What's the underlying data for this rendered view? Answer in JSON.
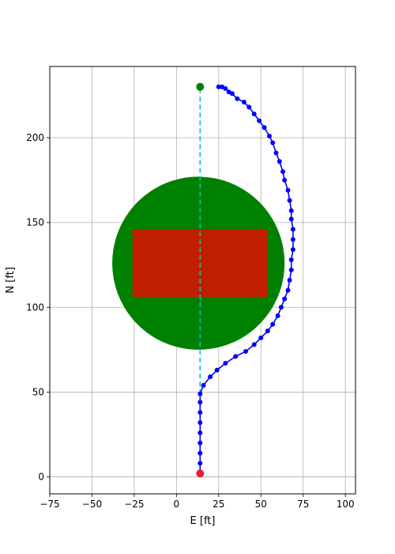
{
  "chart_data": {
    "type": "scatter",
    "xlabel": "E [ft]",
    "ylabel": "N [ft]",
    "xlim": [
      -75,
      106
    ],
    "ylim": [
      -10,
      242
    ],
    "grid": true,
    "x_ticks": [
      -75,
      -50,
      -25,
      0,
      25,
      50,
      75,
      100
    ],
    "y_ticks": [
      0,
      50,
      100,
      150,
      200
    ],
    "obstacle_circle": {
      "center": [
        13,
        126
      ],
      "radius": 51,
      "color": "#008000"
    },
    "obstacle_rect": {
      "x": [
        -26,
        54
      ],
      "y": [
        106,
        146
      ],
      "color": "#c02000"
    },
    "start_point": {
      "x": 14,
      "y": 2,
      "color": "#e0203a"
    },
    "goal_point": {
      "x": 14,
      "y": 230,
      "color": "#008000"
    },
    "straight_line": {
      "x": [
        14,
        14
      ],
      "y": [
        2,
        230
      ],
      "color": "#00bfbf",
      "style": "dashed"
    },
    "trajectory": {
      "color": "#0000ff",
      "x": [
        14,
        14,
        14,
        14,
        14,
        14,
        14,
        14,
        14,
        16,
        20,
        24,
        29,
        35,
        41,
        46,
        50,
        54,
        57,
        60,
        62,
        64,
        66,
        67,
        68,
        68,
        69,
        69,
        69,
        68,
        68,
        67,
        66,
        64,
        63,
        61,
        59,
        57,
        55,
        52,
        49,
        46,
        43,
        40,
        36,
        33,
        31,
        29,
        27,
        25
      ],
      "y": [
        2,
        8,
        14,
        20,
        26,
        32,
        38,
        44,
        49,
        54,
        59,
        63,
        67,
        71,
        74,
        78,
        82,
        86,
        90,
        95,
        100,
        105,
        110,
        116,
        122,
        128,
        134,
        140,
        146,
        152,
        157,
        163,
        169,
        175,
        180,
        186,
        191,
        197,
        201,
        206,
        210,
        214,
        218,
        221,
        223,
        226,
        227,
        229,
        230,
        230
      ]
    }
  }
}
